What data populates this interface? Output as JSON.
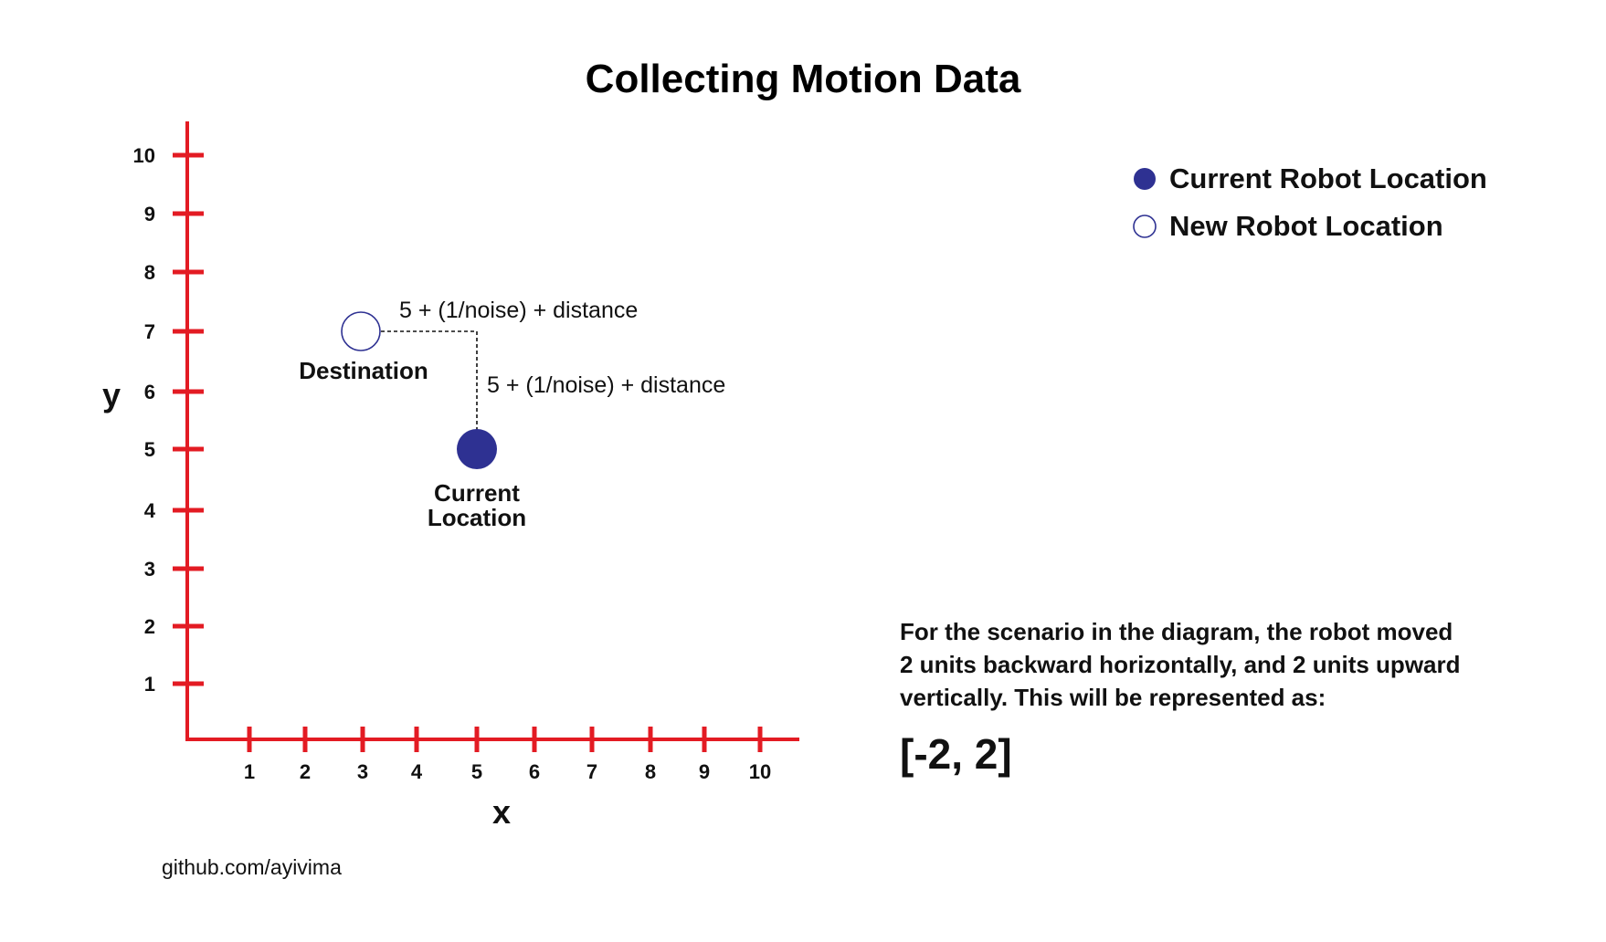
{
  "title": "Collecting Motion Data",
  "colors": {
    "axis": "#e31b23",
    "point": "#2e3192",
    "text": "#111111"
  },
  "axes": {
    "x_label": "x",
    "y_label": "y",
    "x_ticks": [
      "1",
      "2",
      "3",
      "4",
      "5",
      "6",
      "7",
      "8",
      "9",
      "10"
    ],
    "y_ticks": [
      "1",
      "2",
      "3",
      "4",
      "5",
      "6",
      "7",
      "8",
      "9",
      "10"
    ]
  },
  "points": {
    "destination": {
      "label": "Destination",
      "x": 3,
      "y": 7
    },
    "current": {
      "label_line1": "Current",
      "label_line2": "Location",
      "x": 5,
      "y": 5
    }
  },
  "annotations": {
    "horizontal": "5 + (1/noise) + distance",
    "vertical": "5 + (1/noise) + distance"
  },
  "legend": {
    "current": "Current Robot Location",
    "new": "New Robot Location"
  },
  "description": {
    "line1": "For the scenario in the diagram, the robot moved",
    "line2": "2 units backward horizontally, and 2 units upward",
    "line3": "vertically. This will be represented as:",
    "vector": "[-2, 2]"
  },
  "credit": "github.com/ayivima"
}
